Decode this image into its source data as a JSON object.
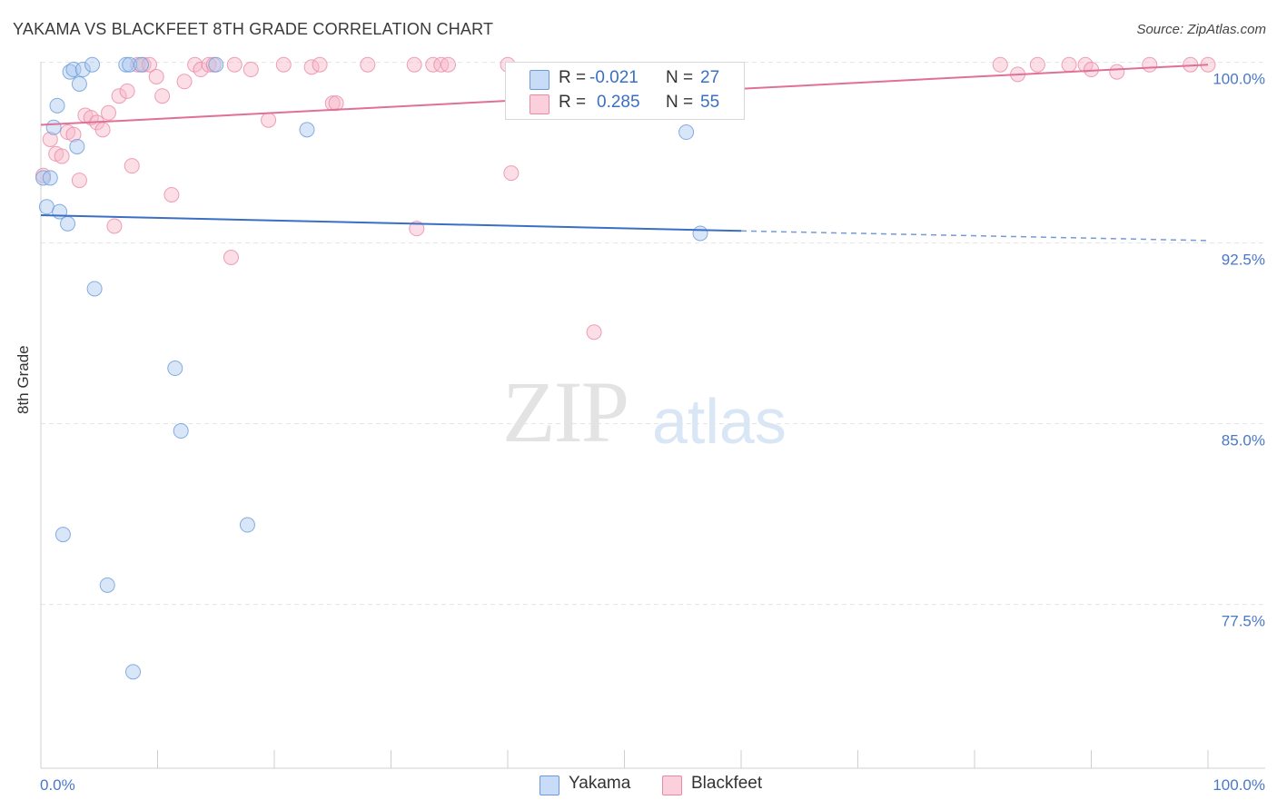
{
  "title": "YAKAMA VS BLACKFEET 8TH GRADE CORRELATION CHART",
  "source": "Source: ZipAtlas.com",
  "watermark": {
    "zip": "ZIP",
    "atlas": "atlas"
  },
  "legend": {
    "rows": [
      {
        "r_label": "R =",
        "r_value": "-0.021",
        "n_label": "N =",
        "n_value": "27",
        "color": "#a9c8f0"
      },
      {
        "r_label": "R =",
        "r_value": "0.285",
        "n_label": "N =",
        "n_value": "55",
        "color": "#f7b6c8"
      }
    ]
  },
  "bottom_legend": [
    {
      "label": "Yakama",
      "color": "#a9c8f0"
    },
    {
      "label": "Blackfeet",
      "color": "#f7b6c8"
    }
  ],
  "colors": {
    "yakama_fill": "#a9c8f0",
    "yakama_stroke": "#6a9ad8",
    "yakama_line": "#3a6fc4",
    "blackfeet_fill": "#f7b6c8",
    "blackfeet_stroke": "#e88aa6",
    "blackfeet_line": "#e07098",
    "axis_text": "#4a78c8",
    "grid": "#e4e4e4"
  },
  "chart_data": {
    "type": "scatter",
    "title": "YAKAMA VS BLACKFEET 8TH GRADE CORRELATION CHART",
    "xlabel": "",
    "ylabel": "8th Grade",
    "xlim": [
      0,
      100
    ],
    "ylim": [
      70.7,
      100.7
    ],
    "x_tick_labels": [
      "0.0%",
      "100.0%"
    ],
    "y_ticks": [
      {
        "value": 100.0,
        "label": "100.0%"
      },
      {
        "value": 92.5,
        "label": "92.5%"
      },
      {
        "value": 85.0,
        "label": "85.0%"
      },
      {
        "value": 77.5,
        "label": "77.5%"
      }
    ],
    "series": [
      {
        "name": "Yakama",
        "r": -0.021,
        "n": 27,
        "trend": {
          "x0": 0,
          "y0": 93.65,
          "x1": 60,
          "y1": 93.0,
          "dash_x1": 100,
          "dash_y1": 92.6
        },
        "points": [
          {
            "x": 0.2,
            "y": 95.2
          },
          {
            "x": 0.5,
            "y": 94.0
          },
          {
            "x": 0.8,
            "y": 95.2
          },
          {
            "x": 1.1,
            "y": 97.3
          },
          {
            "x": 1.4,
            "y": 98.2
          },
          {
            "x": 1.6,
            "y": 93.8
          },
          {
            "x": 1.9,
            "y": 80.4
          },
          {
            "x": 2.3,
            "y": 93.3
          },
          {
            "x": 2.5,
            "y": 99.6
          },
          {
            "x": 2.8,
            "y": 99.7
          },
          {
            "x": 3.1,
            "y": 96.5
          },
          {
            "x": 3.3,
            "y": 99.1
          },
          {
            "x": 3.6,
            "y": 99.7
          },
          {
            "x": 4.4,
            "y": 99.9
          },
          {
            "x": 4.6,
            "y": 90.6
          },
          {
            "x": 5.7,
            "y": 78.3
          },
          {
            "x": 7.3,
            "y": 99.9
          },
          {
            "x": 7.6,
            "y": 99.9
          },
          {
            "x": 7.9,
            "y": 74.7
          },
          {
            "x": 8.6,
            "y": 99.9
          },
          {
            "x": 11.5,
            "y": 87.3
          },
          {
            "x": 12.0,
            "y": 84.7
          },
          {
            "x": 15.0,
            "y": 99.9
          },
          {
            "x": 17.7,
            "y": 80.8
          },
          {
            "x": 22.8,
            "y": 97.2
          },
          {
            "x": 55.3,
            "y": 97.1
          },
          {
            "x": 56.5,
            "y": 92.9
          }
        ]
      },
      {
        "name": "Blackfeet",
        "r": 0.285,
        "n": 55,
        "trend": {
          "x0": 0,
          "y0": 97.4,
          "x1": 100,
          "y1": 99.9
        },
        "points": [
          {
            "x": 0.2,
            "y": 95.3
          },
          {
            "x": 0.8,
            "y": 96.8
          },
          {
            "x": 1.3,
            "y": 96.2
          },
          {
            "x": 1.8,
            "y": 96.1
          },
          {
            "x": 2.3,
            "y": 97.1
          },
          {
            "x": 2.8,
            "y": 97.0
          },
          {
            "x": 3.3,
            "y": 95.1
          },
          {
            "x": 3.8,
            "y": 97.8
          },
          {
            "x": 4.3,
            "y": 97.7
          },
          {
            "x": 4.8,
            "y": 97.5
          },
          {
            "x": 5.3,
            "y": 97.2
          },
          {
            "x": 5.8,
            "y": 97.9
          },
          {
            "x": 6.3,
            "y": 93.2
          },
          {
            "x": 6.7,
            "y": 98.6
          },
          {
            "x": 7.4,
            "y": 98.8
          },
          {
            "x": 7.8,
            "y": 95.7
          },
          {
            "x": 8.3,
            "y": 99.9
          },
          {
            "x": 8.8,
            "y": 99.9
          },
          {
            "x": 9.3,
            "y": 99.9
          },
          {
            "x": 9.9,
            "y": 99.4
          },
          {
            "x": 10.4,
            "y": 98.6
          },
          {
            "x": 11.2,
            "y": 94.5
          },
          {
            "x": 12.3,
            "y": 99.2
          },
          {
            "x": 13.2,
            "y": 99.9
          },
          {
            "x": 13.7,
            "y": 99.7
          },
          {
            "x": 14.4,
            "y": 99.9
          },
          {
            "x": 14.8,
            "y": 99.9
          },
          {
            "x": 16.3,
            "y": 91.9
          },
          {
            "x": 16.6,
            "y": 99.9
          },
          {
            "x": 18.0,
            "y": 99.7
          },
          {
            "x": 19.5,
            "y": 97.6
          },
          {
            "x": 20.8,
            "y": 99.9
          },
          {
            "x": 23.2,
            "y": 99.8
          },
          {
            "x": 23.9,
            "y": 99.9
          },
          {
            "x": 25.0,
            "y": 98.3
          },
          {
            "x": 25.3,
            "y": 98.3
          },
          {
            "x": 28.0,
            "y": 99.9
          },
          {
            "x": 32.0,
            "y": 99.9
          },
          {
            "x": 32.2,
            "y": 93.1
          },
          {
            "x": 33.6,
            "y": 99.9
          },
          {
            "x": 34.3,
            "y": 99.9
          },
          {
            "x": 34.9,
            "y": 99.9
          },
          {
            "x": 40.0,
            "y": 99.9
          },
          {
            "x": 40.3,
            "y": 95.4
          },
          {
            "x": 47.4,
            "y": 88.8
          },
          {
            "x": 82.2,
            "y": 99.9
          },
          {
            "x": 83.7,
            "y": 99.5
          },
          {
            "x": 85.4,
            "y": 99.9
          },
          {
            "x": 88.1,
            "y": 99.9
          },
          {
            "x": 89.5,
            "y": 99.9
          },
          {
            "x": 90.0,
            "y": 99.7
          },
          {
            "x": 92.2,
            "y": 99.6
          },
          {
            "x": 95.0,
            "y": 99.9
          },
          {
            "x": 98.5,
            "y": 99.9
          },
          {
            "x": 100.0,
            "y": 99.9
          }
        ]
      }
    ]
  }
}
